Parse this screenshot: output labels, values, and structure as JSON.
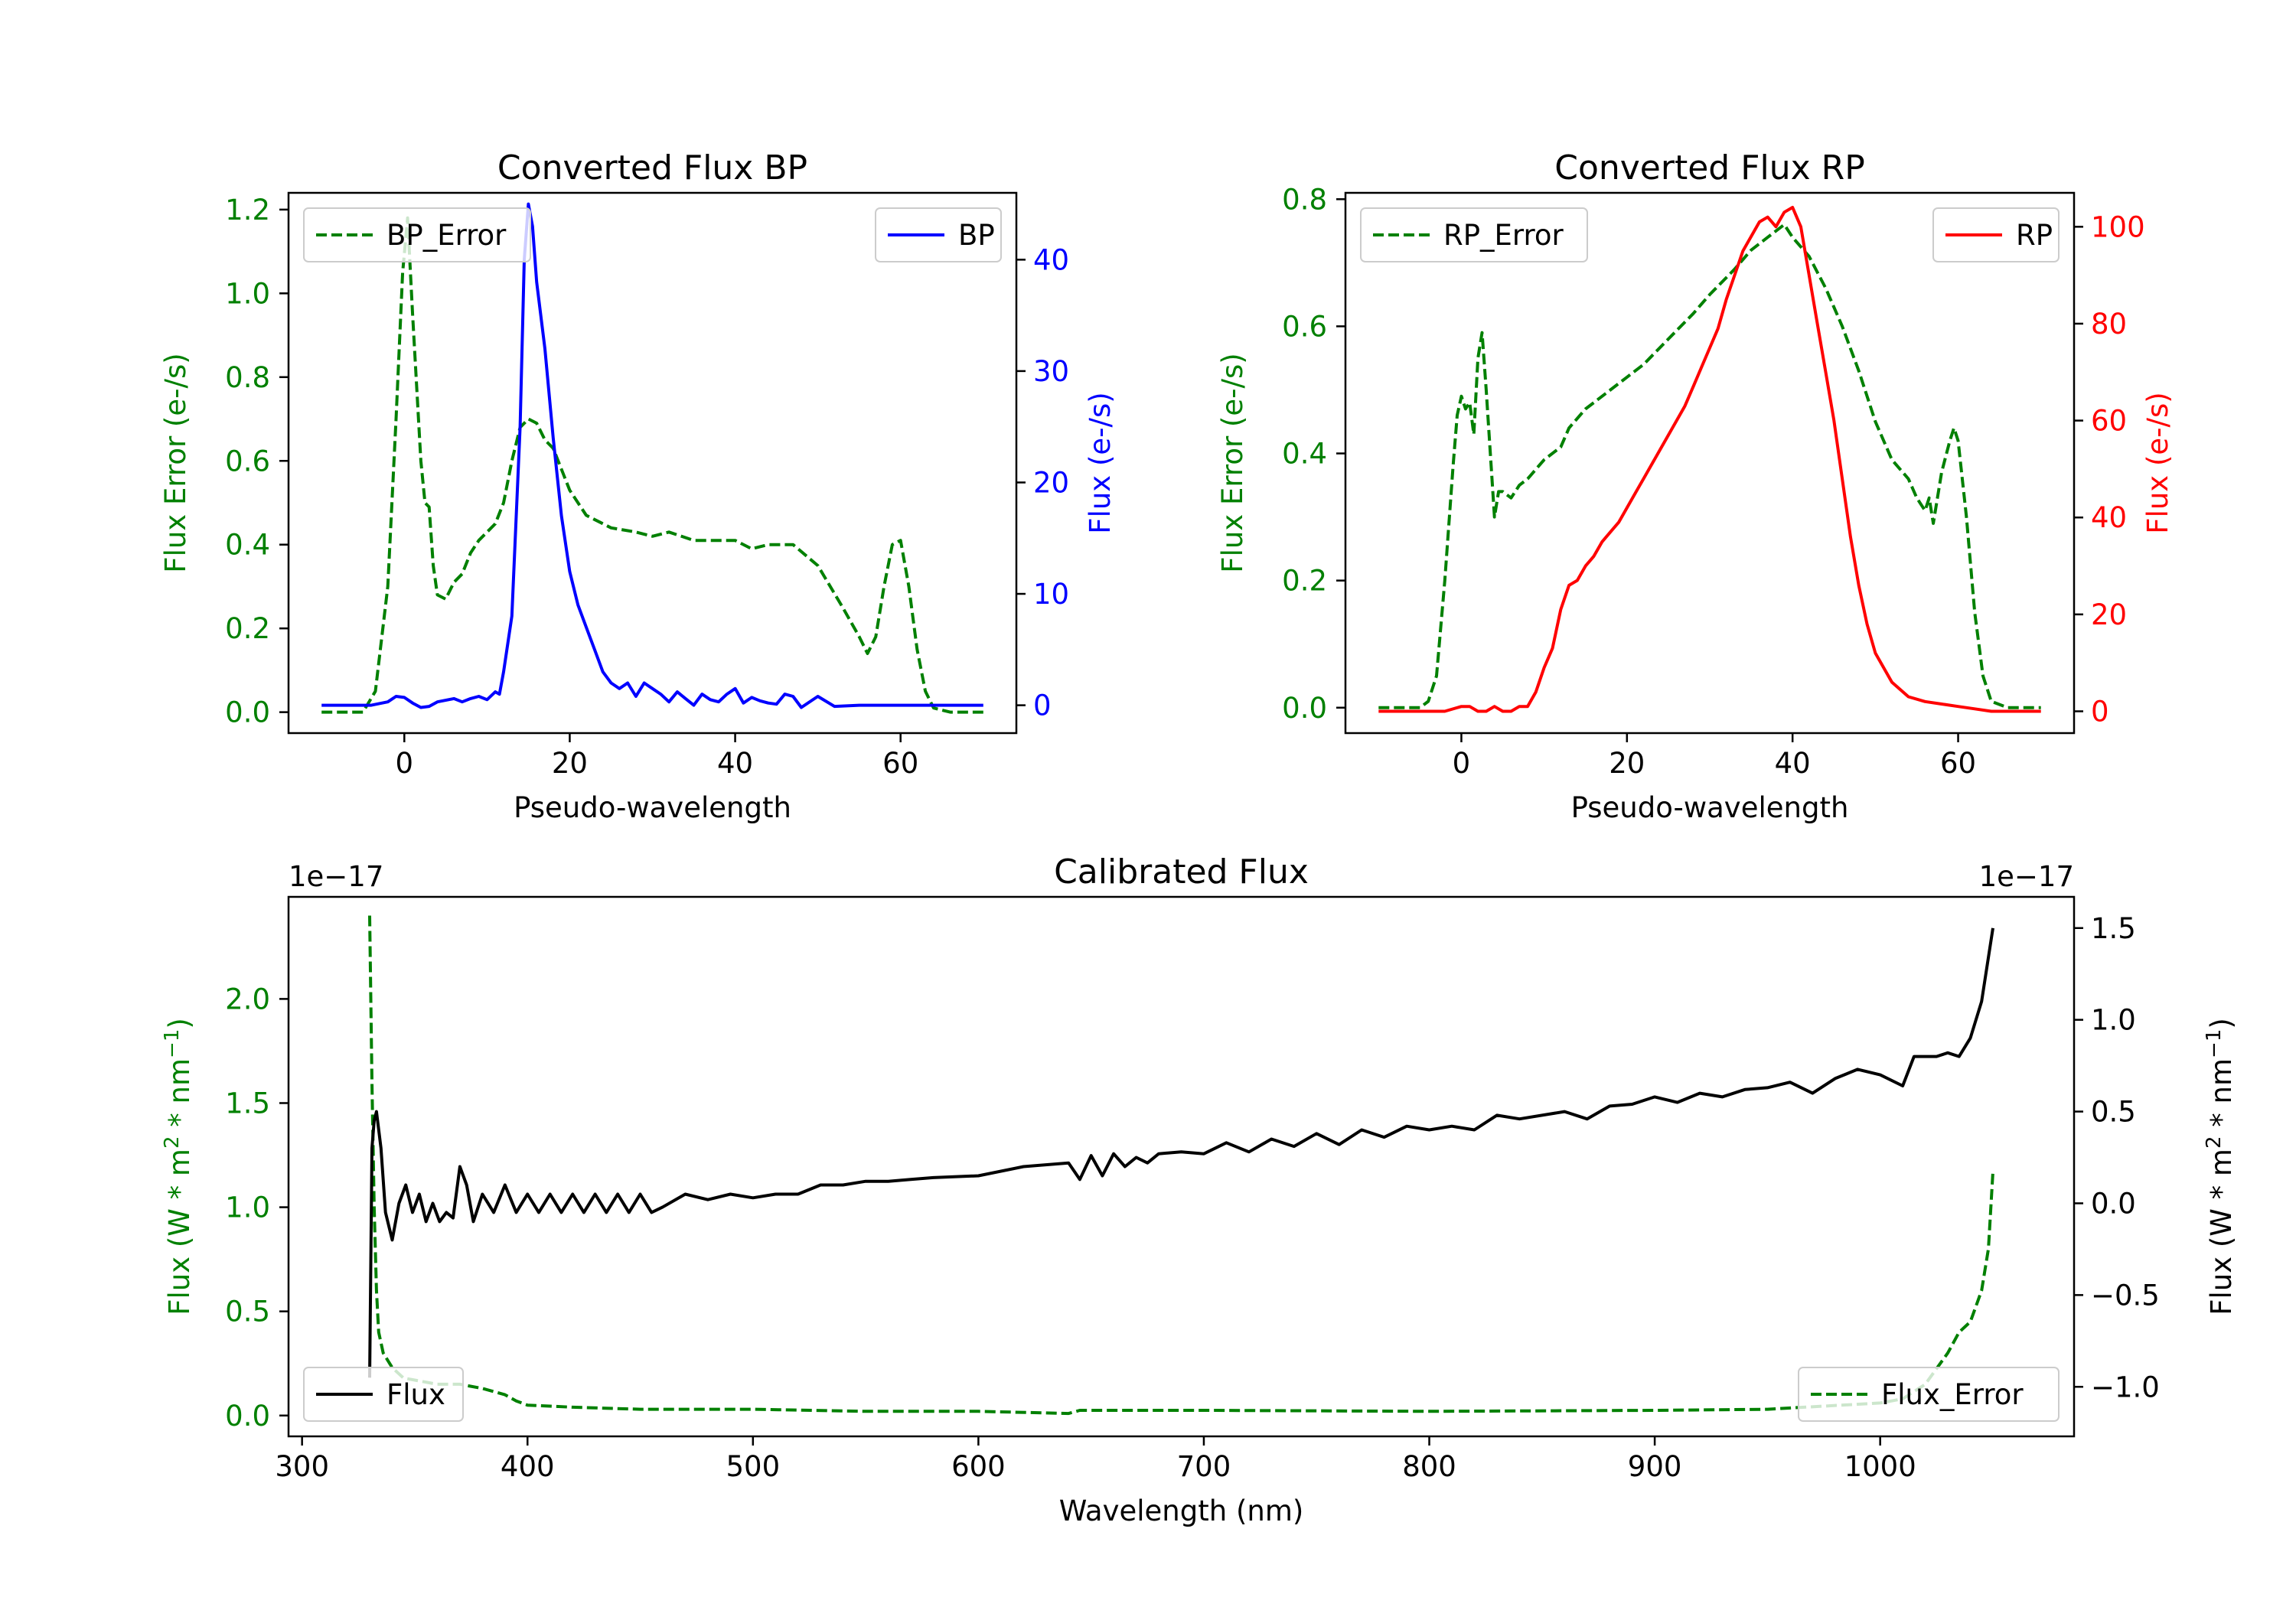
{
  "colors": {
    "green": "#008000",
    "blue": "#0000ff",
    "red": "#ff0000",
    "black": "#000000",
    "axis": "#000000",
    "legend_border": "#cccccc"
  },
  "chart_data": [
    {
      "type": "line",
      "title": "Converted Flux BP",
      "xlabel": "Pseudo-wavelength",
      "ylabel_left": "Flux Error (e-/s)",
      "ylabel_right": "Flux (e-/s)",
      "xlim": [
        -14,
        74
      ],
      "ylim_left": [
        -0.05,
        1.24
      ],
      "ylim_right": [
        -2.5,
        46
      ],
      "xticks": [
        0,
        20,
        40,
        60
      ],
      "xtick_labels": [
        "0",
        "20",
        "40",
        "60"
      ],
      "yticks_left": [
        0.0,
        0.2,
        0.4,
        0.6,
        0.8,
        1.0,
        1.2
      ],
      "ytick_labels_left": [
        "0.0",
        "0.2",
        "0.4",
        "0.6",
        "0.8",
        "1.0",
        "1.2"
      ],
      "yticks_right": [
        0,
        10,
        20,
        30,
        40
      ],
      "ytick_labels_right": [
        "0",
        "10",
        "20",
        "30",
        "40"
      ],
      "legend_left": {
        "label": "BP_Error",
        "location": "upper left"
      },
      "legend_right": {
        "label": "BP",
        "location": "upper right"
      },
      "series": [
        {
          "name": "BP_Error",
          "axis": "left",
          "style": "dashed",
          "color": "green",
          "x": [
            -10,
            -5,
            -3.5,
            -2,
            -1,
            -0.2,
            0.4,
            1,
            2,
            2.5,
            3,
            3.5,
            4,
            5,
            6,
            7,
            8,
            9,
            10,
            11,
            12,
            13,
            14,
            15,
            16,
            17,
            18,
            19,
            20,
            22,
            25,
            28,
            30,
            32,
            35,
            38,
            40,
            42,
            44,
            47,
            50,
            53,
            55,
            56,
            57,
            58,
            59,
            60,
            61,
            62,
            63,
            64,
            66,
            70
          ],
          "y": [
            0,
            0,
            0.05,
            0.3,
            0.7,
            1.05,
            1.18,
            0.95,
            0.6,
            0.5,
            0.49,
            0.35,
            0.28,
            0.27,
            0.31,
            0.33,
            0.38,
            0.41,
            0.43,
            0.45,
            0.5,
            0.6,
            0.68,
            0.7,
            0.69,
            0.65,
            0.63,
            0.58,
            0.53,
            0.47,
            0.44,
            0.43,
            0.42,
            0.43,
            0.41,
            0.41,
            0.41,
            0.39,
            0.4,
            0.4,
            0.35,
            0.25,
            0.18,
            0.14,
            0.18,
            0.3,
            0.4,
            0.41,
            0.3,
            0.15,
            0.05,
            0.01,
            0,
            0
          ]
        },
        {
          "name": "BP",
          "axis": "right",
          "style": "solid",
          "color": "blue",
          "x": [
            -10,
            -6,
            -4,
            -2,
            -1,
            0,
            1,
            2,
            3,
            4,
            6,
            7,
            8,
            9,
            10,
            11,
            11.5,
            12,
            13,
            14,
            14.5,
            15,
            15.5,
            16,
            17,
            18,
            19,
            20,
            21,
            22,
            23,
            24,
            25,
            26,
            27,
            28,
            29,
            30,
            31,
            32,
            33,
            34,
            35,
            36,
            37,
            38,
            39,
            40,
            41,
            42,
            43,
            44,
            45,
            46,
            47,
            48,
            50,
            52,
            55,
            70
          ],
          "y": [
            0,
            0,
            0,
            0.3,
            0.8,
            0.7,
            0.2,
            -0.2,
            -0.1,
            0.3,
            0.6,
            0.3,
            0.6,
            0.8,
            0.5,
            1.2,
            1.0,
            3,
            8,
            25,
            40,
            45,
            43,
            38,
            32,
            24,
            17,
            12,
            9,
            7,
            5,
            3,
            2,
            1.5,
            2,
            0.8,
            2,
            1.5,
            1,
            0.3,
            1.2,
            0.6,
            0,
            1,
            0.5,
            0.3,
            1,
            1.5,
            0.2,
            0.7,
            0.4,
            0.2,
            0.1,
            1,
            0.8,
            -0.2,
            0.8,
            -0.1,
            0,
            0
          ]
        }
      ]
    },
    {
      "type": "line",
      "title": "Converted Flux RP",
      "xlabel": "Pseudo-wavelength",
      "ylabel_left": "Flux Error (e-/s)",
      "ylabel_right": "Flux (e-/s)",
      "xlim": [
        -14,
        74
      ],
      "ylim_left": [
        -0.04,
        0.81
      ],
      "ylim_right": [
        -4.5,
        107
      ],
      "xticks": [
        0,
        20,
        40,
        60
      ],
      "xtick_labels": [
        "0",
        "20",
        "40",
        "60"
      ],
      "yticks_left": [
        0.0,
        0.2,
        0.4,
        0.6,
        0.8
      ],
      "ytick_labels_left": [
        "0.0",
        "0.2",
        "0.4",
        "0.6",
        "0.8"
      ],
      "yticks_right": [
        0,
        20,
        40,
        60,
        80,
        100
      ],
      "ytick_labels_right": [
        "0",
        "20",
        "40",
        "60",
        "80",
        "100"
      ],
      "legend_left": {
        "label": "RP_Error",
        "location": "upper left"
      },
      "legend_right": {
        "label": "RP",
        "location": "upper right"
      },
      "series": [
        {
          "name": "RP_Error",
          "axis": "left",
          "style": "dashed",
          "color": "green",
          "x": [
            -10,
            -5,
            -4,
            -3,
            -2,
            -1,
            -0.5,
            0,
            0.5,
            1,
            1.5,
            2,
            2.5,
            3,
            3.5,
            4,
            4.5,
            5,
            6,
            7,
            8,
            10,
            12,
            13,
            15,
            18,
            20,
            22,
            25,
            28,
            30,
            33,
            35,
            37,
            38,
            39,
            40,
            42,
            44,
            46,
            48,
            50,
            52,
            54,
            55,
            56,
            56.5,
            57,
            58,
            59,
            59.5,
            60,
            61,
            62,
            63,
            64,
            66,
            70
          ],
          "y": [
            0,
            0,
            0.01,
            0.05,
            0.2,
            0.38,
            0.46,
            0.49,
            0.47,
            0.48,
            0.43,
            0.55,
            0.59,
            0.5,
            0.4,
            0.3,
            0.34,
            0.34,
            0.33,
            0.35,
            0.36,
            0.39,
            0.41,
            0.44,
            0.47,
            0.5,
            0.52,
            0.54,
            0.58,
            0.62,
            0.65,
            0.69,
            0.72,
            0.74,
            0.75,
            0.76,
            0.74,
            0.71,
            0.66,
            0.6,
            0.53,
            0.45,
            0.39,
            0.36,
            0.33,
            0.31,
            0.33,
            0.29,
            0.37,
            0.42,
            0.44,
            0.42,
            0.3,
            0.15,
            0.05,
            0.01,
            0,
            0
          ]
        },
        {
          "name": "RP",
          "axis": "right",
          "style": "solid",
          "color": "red",
          "x": [
            -10,
            -2,
            0,
            1,
            2,
            3,
            4,
            5,
            6,
            7,
            8,
            9,
            10,
            11,
            12,
            13,
            14,
            15,
            16,
            17,
            18,
            19,
            20,
            21,
            22,
            23,
            24,
            25,
            26,
            27,
            28,
            29,
            30,
            31,
            32,
            33,
            34,
            35,
            36,
            37,
            38,
            39,
            40,
            41,
            42,
            43,
            44,
            45,
            46,
            47,
            48,
            49,
            50,
            52,
            54,
            56,
            58,
            60,
            62,
            64,
            66,
            70
          ],
          "y": [
            0,
            0,
            1,
            1,
            0,
            0,
            1,
            0,
            0,
            1,
            1,
            4,
            9,
            13,
            21,
            26,
            27,
            30,
            32,
            35,
            37,
            39,
            42,
            45,
            48,
            51,
            54,
            57,
            60,
            63,
            67,
            71,
            75,
            79,
            85,
            90,
            95,
            98,
            101,
            102,
            100,
            103,
            104,
            100,
            90,
            80,
            70,
            60,
            48,
            36,
            26,
            18,
            12,
            6,
            3,
            2,
            1.5,
            1,
            0.5,
            0,
            0,
            0
          ]
        }
      ]
    },
    {
      "type": "line",
      "title": "Calibrated Flux",
      "xlabel": "Wavelength (nm)",
      "ylabel_left": "Flux (W * m^2 * nm^-1)",
      "ylabel_right": "Flux (W * m^2 * nm^-1)",
      "ylabel_main": "Flux (W * m",
      "ylabel_mid": " * nm",
      "ylabel_end": ")",
      "ylabel_sup1": "2",
      "ylabel_sup2": "−1",
      "offset_left": "1e−17",
      "offset_right": "1e−17",
      "xlim": [
        294,
        1086
      ],
      "ylim_left": [
        -0.1,
        2.49
      ],
      "ylim_right": [
        -1.27,
        1.67
      ],
      "xticks": [
        300,
        400,
        500,
        600,
        700,
        800,
        900,
        1000
      ],
      "xtick_labels": [
        "300",
        "400",
        "500",
        "600",
        "700",
        "800",
        "900",
        "1000"
      ],
      "yticks_left": [
        0.0,
        0.5,
        1.0,
        1.5,
        2.0
      ],
      "ytick_labels_left": [
        "0.0",
        "0.5",
        "1.0",
        "1.5",
        "2.0"
      ],
      "yticks_right": [
        -1.0,
        -0.5,
        0.0,
        0.5,
        1.0,
        1.5
      ],
      "ytick_labels_right": [
        "−1.0",
        "−0.5",
        "0.0",
        "0.5",
        "1.0",
        "1.5"
      ],
      "legend_left": {
        "label": "Flux",
        "location": "lower left"
      },
      "legend_right": {
        "label": "Flux_Error",
        "location": "lower right"
      },
      "series": [
        {
          "name": "Flux_Error",
          "axis": "left",
          "style": "dashed",
          "color": "green",
          "x": [
            330,
            331,
            332,
            333,
            334,
            336,
            340,
            345,
            350,
            360,
            370,
            380,
            390,
            395,
            400,
            420,
            450,
            500,
            550,
            600,
            640,
            645,
            700,
            800,
            900,
            950,
            1000,
            1010,
            1020,
            1030,
            1035,
            1040,
            1045,
            1048,
            1050
          ],
          "y": [
            2.4,
            1.6,
            1.0,
            0.6,
            0.4,
            0.3,
            0.23,
            0.18,
            0.17,
            0.15,
            0.15,
            0.13,
            0.1,
            0.07,
            0.05,
            0.04,
            0.03,
            0.03,
            0.02,
            0.02,
            0.01,
            0.025,
            0.025,
            0.02,
            0.025,
            0.03,
            0.06,
            0.08,
            0.15,
            0.3,
            0.4,
            0.45,
            0.6,
            0.8,
            1.17
          ]
        },
        {
          "name": "Flux",
          "axis": "right",
          "style": "solid",
          "color": "black",
          "x": [
            330,
            331,
            332,
            333,
            335,
            337,
            340,
            343,
            346,
            349,
            352,
            355,
            358,
            361,
            364,
            367,
            370,
            373,
            376,
            380,
            385,
            390,
            395,
            400,
            405,
            410,
            415,
            420,
            425,
            430,
            435,
            440,
            445,
            450,
            455,
            460,
            470,
            480,
            490,
            500,
            510,
            520,
            530,
            540,
            550,
            560,
            570,
            580,
            600,
            620,
            640,
            645,
            650,
            655,
            660,
            665,
            670,
            675,
            680,
            690,
            700,
            710,
            720,
            730,
            740,
            750,
            760,
            770,
            780,
            790,
            800,
            810,
            820,
            830,
            840,
            860,
            870,
            880,
            890,
            900,
            910,
            920,
            930,
            940,
            950,
            960,
            970,
            980,
            990,
            1000,
            1010,
            1015,
            1020,
            1025,
            1030,
            1035,
            1040,
            1045,
            1050
          ],
          "y": [
            -0.95,
            0.3,
            0.45,
            0.5,
            0.3,
            -0.05,
            -0.2,
            0.0,
            0.1,
            -0.05,
            0.05,
            -0.1,
            0.0,
            -0.1,
            -0.05,
            -0.08,
            0.2,
            0.1,
            -0.1,
            0.05,
            -0.05,
            0.1,
            -0.05,
            0.05,
            -0.05,
            0.05,
            -0.05,
            0.05,
            -0.05,
            0.05,
            -0.05,
            0.05,
            -0.05,
            0.05,
            -0.05,
            -0.02,
            0.05,
            0.02,
            0.05,
            0.03,
            0.05,
            0.05,
            0.1,
            0.1,
            0.12,
            0.12,
            0.13,
            0.14,
            0.15,
            0.2,
            0.22,
            0.13,
            0.26,
            0.15,
            0.27,
            0.2,
            0.25,
            0.22,
            0.27,
            0.28,
            0.27,
            0.33,
            0.28,
            0.35,
            0.31,
            0.38,
            0.32,
            0.4,
            0.36,
            0.42,
            0.4,
            0.42,
            0.4,
            0.48,
            0.46,
            0.5,
            0.46,
            0.53,
            0.54,
            0.58,
            0.55,
            0.6,
            0.58,
            0.62,
            0.63,
            0.66,
            0.6,
            0.68,
            0.73,
            0.7,
            0.64,
            0.8,
            0.8,
            0.8,
            0.82,
            0.8,
            0.9,
            1.1,
            1.5
          ]
        }
      ]
    }
  ]
}
